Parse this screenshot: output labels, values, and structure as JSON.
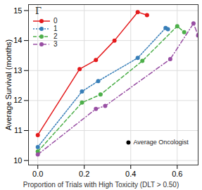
{
  "chart_data": {
    "type": "line",
    "x_label": "Proportion of Trials with High Toxicity (DLT > 0.50)",
    "y_label": "Average Survival (months)",
    "legend_title": "Γ",
    "xlim": [
      -0.04,
      0.69
    ],
    "ylim": [
      9.85,
      15.2
    ],
    "xticks": [
      {
        "value": 0,
        "label": "0.0"
      },
      {
        "value": 0.2,
        "label": "0.2"
      },
      {
        "value": 0.4,
        "label": "0.4"
      },
      {
        "value": 0.6,
        "label": "0.6"
      }
    ],
    "yticks": [
      10,
      11,
      12,
      13,
      14,
      15
    ],
    "grid": true,
    "legend": "top-left",
    "series": [
      {
        "name": "0",
        "color": "#e41a1c",
        "line_style": "solid",
        "marker": "circle",
        "x": [
          0,
          0.18,
          0.25,
          0.33,
          0.43,
          0.47
        ],
        "values": [
          10.85,
          13.05,
          13.35,
          14.0,
          14.95,
          14.85
        ]
      },
      {
        "name": "1",
        "color": "#377eb8",
        "line_style": "dotted",
        "marker": "circle",
        "x": [
          0,
          0.19,
          0.26,
          0.43,
          0.55,
          0.56
        ],
        "values": [
          10.45,
          12.3,
          12.65,
          13.42,
          14.42,
          14.38
        ]
      },
      {
        "name": "2",
        "color": "#4daf4a",
        "line_style": "dashed",
        "marker": "circle",
        "x": [
          0,
          0.19,
          0.27,
          0.45,
          0.6,
          0.63
        ],
        "values": [
          10.3,
          11.93,
          12.2,
          13.32,
          14.48,
          14.28
        ]
      },
      {
        "name": "3",
        "color": "#984ea3",
        "line_style": "dashdot",
        "marker": "circle",
        "x": [
          0,
          0.25,
          0.29,
          0.57,
          0.67,
          0.69
        ],
        "values": [
          10.2,
          11.72,
          11.82,
          13.38,
          14.57,
          14.17
        ]
      }
    ],
    "annotations": [
      {
        "text": "Average Oncologist",
        "x": 0.39,
        "y": 10.6,
        "color": "#000000",
        "marker": "circle"
      }
    ]
  }
}
